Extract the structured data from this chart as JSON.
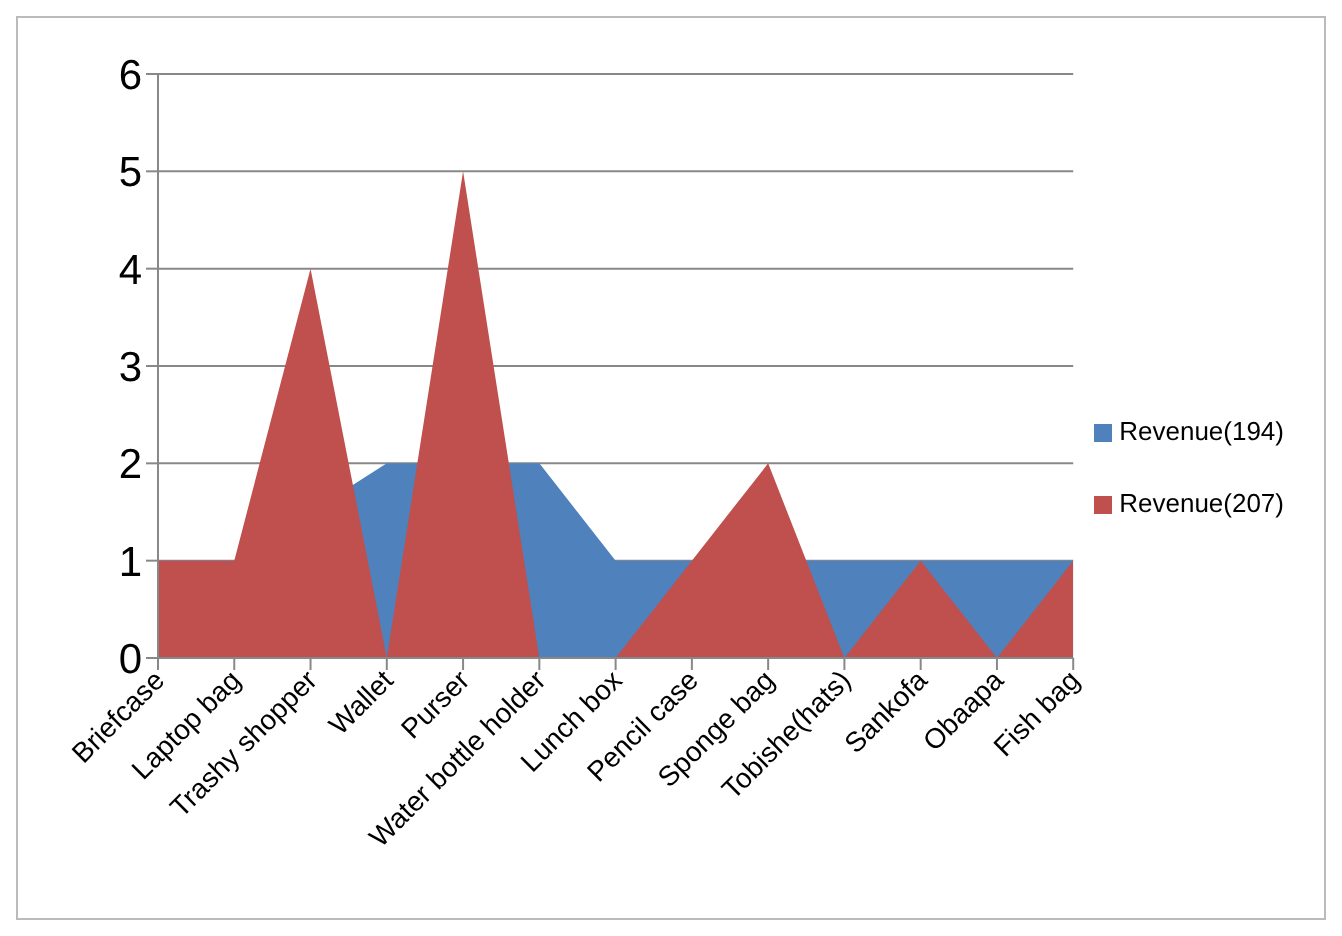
{
  "chart_data": {
    "type": "area",
    "categories": [
      "Briefcase",
      "Laptop bag",
      "Trashy shopper",
      "Wallet",
      "Purser",
      "Water bottle holder",
      "Lunch box",
      "Pencil case",
      "Sponge bag",
      "Tobishe(hats)",
      "Sankofa",
      "Obaapa",
      "Fish bag"
    ],
    "series": [
      {
        "name": "Revenue(194)",
        "color": "#4f81bd",
        "values": [
          1,
          1,
          null,
          2,
          null,
          2,
          1,
          1,
          null,
          1,
          1,
          1,
          1
        ]
      },
      {
        "name": "Revenue(207)",
        "color": "#c0504d",
        "values": [
          1,
          1,
          4,
          0,
          5,
          0,
          0,
          1,
          2,
          0,
          1,
          0,
          1
        ]
      }
    ],
    "ylim": [
      0,
      6
    ],
    "yticks": [
      0,
      1,
      2,
      3,
      4,
      5,
      6
    ],
    "grid": "y",
    "legend": "right"
  }
}
